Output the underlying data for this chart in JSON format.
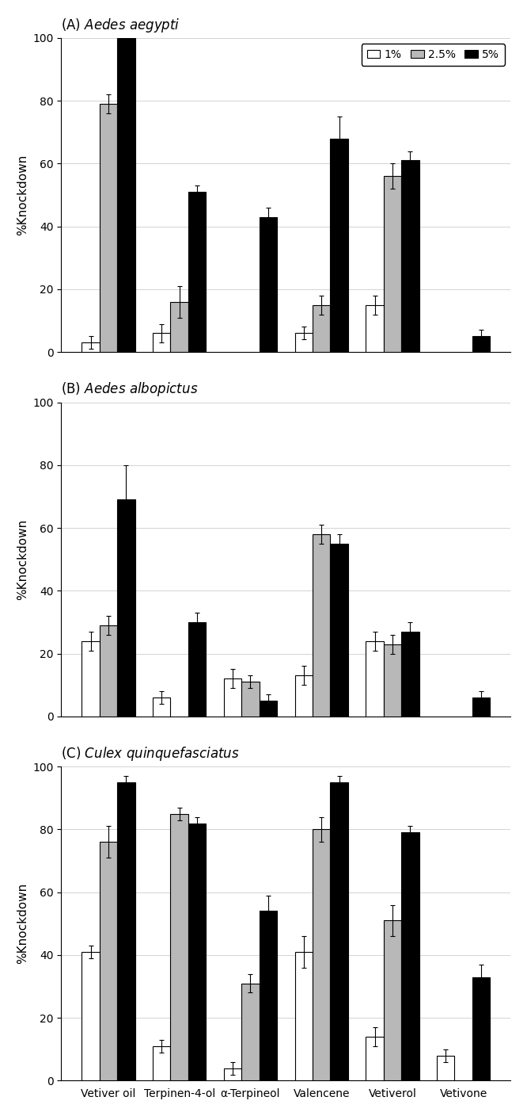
{
  "categories": [
    "Vetiver oil",
    "Terpinen-4-ol",
    "α-Terpineol",
    "Valencene",
    "Vetiverol",
    "Vetivone"
  ],
  "panel_title_italics": [
    "Aedes aegypti",
    "Aedes albopictus",
    "Culex quinquefasciatus"
  ],
  "panel_title_prefix": [
    "(A) ",
    "(B) ",
    "(C) "
  ],
  "ylabel": "%Knockdown",
  "ylim": [
    0,
    100
  ],
  "yticks": [
    0,
    20,
    40,
    60,
    80,
    100
  ],
  "colors": [
    "#ffffff",
    "#b8b8b8",
    "#000000"
  ],
  "edgecolor": "#000000",
  "legend_labels": [
    "1%",
    "2.5%",
    "5%"
  ],
  "bar_width": 0.25,
  "data": [
    {
      "values_1pct": [
        3,
        6,
        0,
        6,
        15,
        0
      ],
      "values_2pct": [
        79,
        16,
        0,
        15,
        56,
        0
      ],
      "values_5pct": [
        100,
        51,
        43,
        68,
        61,
        5
      ],
      "err_1pct": [
        2,
        3,
        0,
        2,
        3,
        0
      ],
      "err_2pct": [
        3,
        5,
        0,
        3,
        4,
        0
      ],
      "err_5pct": [
        0,
        2,
        3,
        7,
        3,
        2
      ]
    },
    {
      "values_1pct": [
        24,
        6,
        12,
        13,
        24,
        0
      ],
      "values_2pct": [
        29,
        0,
        11,
        58,
        23,
        0
      ],
      "values_5pct": [
        69,
        30,
        5,
        55,
        27,
        6
      ],
      "err_1pct": [
        3,
        2,
        3,
        3,
        3,
        0
      ],
      "err_2pct": [
        3,
        0,
        2,
        3,
        3,
        0
      ],
      "err_5pct": [
        11,
        3,
        2,
        3,
        3,
        2
      ]
    },
    {
      "values_1pct": [
        41,
        11,
        4,
        41,
        14,
        8
      ],
      "values_2pct": [
        76,
        85,
        31,
        80,
        51,
        0
      ],
      "values_5pct": [
        95,
        82,
        54,
        95,
        79,
        33
      ],
      "err_1pct": [
        2,
        2,
        2,
        5,
        3,
        2
      ],
      "err_2pct": [
        5,
        2,
        3,
        4,
        5,
        0
      ],
      "err_5pct": [
        2,
        2,
        5,
        2,
        2,
        4
      ]
    }
  ]
}
